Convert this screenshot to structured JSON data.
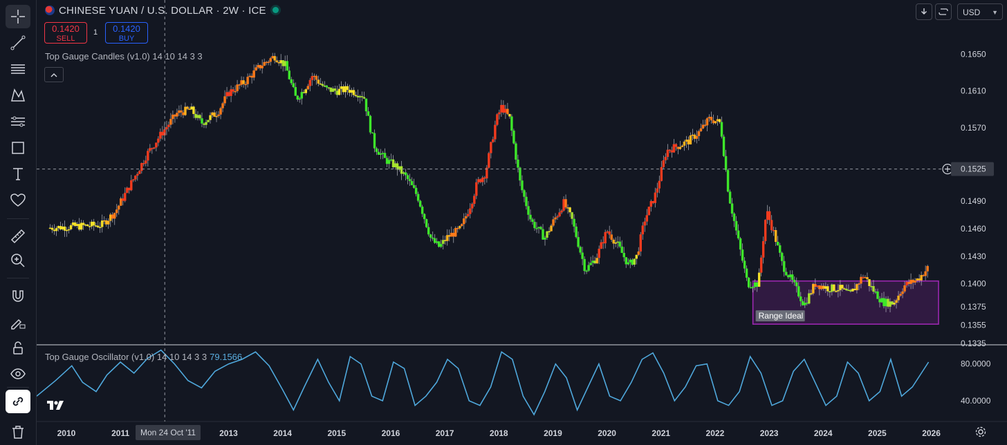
{
  "symbol": {
    "title": "CHINESE YUAN / U.S. DOLLAR · 2W · ICE",
    "live_color": "#089981"
  },
  "trade": {
    "sell_price": "0.1420",
    "sell_label": "SELL",
    "buy_price": "0.1420",
    "buy_label": "BUY",
    "spread": "1"
  },
  "indicators": {
    "candles_label": "Top Gauge Candles (v1.0) 14 10 14 3 3",
    "oscillator_label": "Top Gauge Oscillator (v1.0) 14 10 14 3 3",
    "oscillator_value": "79.1566"
  },
  "toolbar": {
    "items": [
      "crosshair-icon",
      "trend-line-icon",
      "fib-retracement-icon",
      "xabcd-pattern-icon",
      "forecast-icon",
      "rectangle-icon",
      "text-icon",
      "heart-icon",
      "ruler-icon",
      "zoom-in-icon",
      "magnet-icon",
      "lock-pencil-icon",
      "lock-icon",
      "eye-icon",
      "link-icon",
      "trash-icon"
    ]
  },
  "top_right": {
    "currency": "USD",
    "buttons": [
      "download-icon",
      "fullscreen-icon"
    ]
  },
  "crosshair": {
    "price_label": "0.1525",
    "date_label": "Mon 24 Oct '11"
  },
  "annotation": {
    "label": "Range Ideal",
    "color": "#9c27b0"
  },
  "colors": {
    "background": "#131722",
    "oscillator_line": "#4fa8dc",
    "grid": "#2a2e39"
  },
  "chart_data": [
    {
      "type": "candlestick",
      "title": "CHINESE YUAN / U.S. DOLLAR · 2W · ICE",
      "x": [
        2009.7,
        2010.3,
        2010.65,
        2010.9,
        2011.25,
        2011.5,
        2011.8,
        2012.05,
        2012.3,
        2012.5,
        2012.8,
        2013.0,
        2013.3,
        2013.6,
        2013.85,
        2014.05,
        2014.25,
        2014.4,
        2014.55,
        2014.8,
        2015.0,
        2015.2,
        2015.5,
        2015.6,
        2015.7,
        2015.9,
        2016.1,
        2016.3,
        2016.5,
        2016.75,
        2016.9,
        2017.05,
        2017.3,
        2017.5,
        2017.6,
        2017.75,
        2017.95,
        2018.05,
        2018.2,
        2018.4,
        2018.6,
        2018.85,
        2019.0,
        2019.2,
        2019.35,
        2019.6,
        2019.8,
        2020.0,
        2020.2,
        2020.4,
        2020.55,
        2020.7,
        2020.9,
        2021.1,
        2021.3,
        2021.5,
        2021.7,
        2021.9,
        2022.1,
        2022.25,
        2022.4,
        2022.6,
        2022.8,
        2022.95,
        2023.1,
        2023.25,
        2023.45,
        2023.65,
        2023.85,
        2024.1,
        2024.3,
        2024.5,
        2024.75,
        2024.9,
        2025.1,
        2025.3,
        2025.5,
        2025.75,
        2025.95
      ],
      "y": [
        0.1461,
        0.1463,
        0.1464,
        0.1478,
        0.1515,
        0.1542,
        0.1567,
        0.1586,
        0.159,
        0.1575,
        0.1587,
        0.1608,
        0.162,
        0.1638,
        0.1648,
        0.1638,
        0.1601,
        0.1612,
        0.1627,
        0.1612,
        0.161,
        0.1612,
        0.1605,
        0.1575,
        0.155,
        0.1535,
        0.1528,
        0.1515,
        0.1495,
        0.1448,
        0.144,
        0.1451,
        0.146,
        0.149,
        0.151,
        0.152,
        0.1578,
        0.1593,
        0.158,
        0.1508,
        0.1468,
        0.145,
        0.1467,
        0.1488,
        0.147,
        0.1415,
        0.1428,
        0.1458,
        0.1442,
        0.142,
        0.143,
        0.147,
        0.1498,
        0.1545,
        0.155,
        0.1555,
        0.1565,
        0.158,
        0.1575,
        0.1498,
        0.1455,
        0.14,
        0.14,
        0.148,
        0.1453,
        0.142,
        0.14,
        0.1377,
        0.14,
        0.1395,
        0.1395,
        0.1388,
        0.141,
        0.1395,
        0.138,
        0.1379,
        0.1398,
        0.1405,
        0.1418
      ],
      "xlim": [
        2009.45,
        2026.3
      ],
      "ylim": [
        0.1335,
        0.167
      ],
      "y_ticks": [
        "0.1650",
        "0.1610",
        "0.1570",
        "0.1525",
        "0.1490",
        "0.1460",
        "0.1430",
        "0.1400",
        "0.1375",
        "0.1355",
        "0.1335"
      ],
      "x_ticks": [
        "2010",
        "2011",
        "2012",
        "2013",
        "2014",
        "2015",
        "2016",
        "2017",
        "2018",
        "2019",
        "2020",
        "2021",
        "2022",
        "2023",
        "2024",
        "2025",
        "2026"
      ],
      "annotation_box": {
        "x": [
          2022.7,
          2027.1
        ],
        "y": [
          0.1356,
          0.1403
        ]
      }
    },
    {
      "type": "line",
      "title": "Top Gauge Oscillator (v1.0) 14 10 14 3 3",
      "series": [
        {
          "color": "#4fa8dc",
          "x": [
            2009.45,
            2009.8,
            2010.1,
            2010.3,
            2010.55,
            2010.75,
            2011.0,
            2011.25,
            2011.5,
            2011.75,
            2012.0,
            2012.25,
            2012.5,
            2012.75,
            2013.0,
            2013.25,
            2013.5,
            2013.75,
            2014.0,
            2014.2,
            2014.4,
            2014.65,
            2014.85,
            2015.05,
            2015.25,
            2015.45,
            2015.65,
            2015.85,
            2016.05,
            2016.25,
            2016.45,
            2016.65,
            2016.85,
            2017.05,
            2017.25,
            2017.45,
            2017.65,
            2017.85,
            2018.05,
            2018.25,
            2018.45,
            2018.65,
            2018.85,
            2019.05,
            2019.25,
            2019.45,
            2019.65,
            2019.85,
            2020.05,
            2020.25,
            2020.45,
            2020.65,
            2020.85,
            2021.05,
            2021.25,
            2021.45,
            2021.65,
            2021.85,
            2022.05,
            2022.25,
            2022.45,
            2022.65,
            2022.85,
            2023.05,
            2023.25,
            2023.45,
            2023.65,
            2023.85,
            2024.05,
            2024.25,
            2024.45,
            2024.65,
            2024.85,
            2025.05,
            2025.25,
            2025.45,
            2025.65,
            2025.95
          ],
          "values": [
            45,
            62,
            78,
            60,
            50,
            68,
            82,
            70,
            86,
            95,
            80,
            62,
            54,
            72,
            80,
            85,
            93,
            78,
            52,
            30,
            55,
            85,
            60,
            40,
            88,
            80,
            45,
            40,
            82,
            75,
            35,
            45,
            60,
            85,
            75,
            40,
            35,
            55,
            93,
            85,
            45,
            25,
            50,
            80,
            65,
            30,
            55,
            80,
            45,
            40,
            60,
            85,
            92,
            70,
            40,
            55,
            78,
            80,
            40,
            35,
            50,
            88,
            70,
            35,
            40,
            72,
            85,
            60,
            35,
            45,
            82,
            70,
            40,
            50,
            85,
            45,
            55,
            82
          ]
        }
      ],
      "ylim": [
        25,
        100
      ],
      "y_ticks": [
        "80.0000",
        "40.0000"
      ]
    }
  ]
}
